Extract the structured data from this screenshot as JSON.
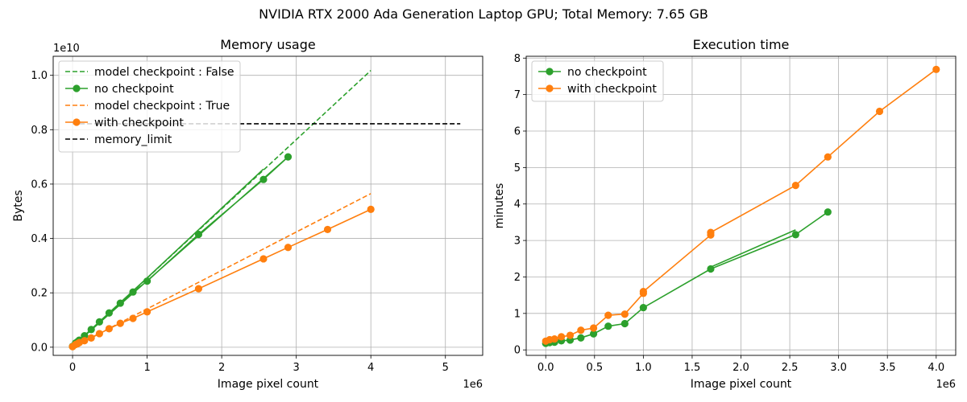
{
  "figure": {
    "title": "NVIDIA RTX 2000 Ada Generation Laptop GPU; Total Memory: 7.65 GB"
  },
  "colors": {
    "green": "#2ca02c",
    "orange": "#ff7f0e",
    "black": "#000000",
    "grid": "#b0b0b0"
  },
  "chart_data": [
    {
      "type": "line",
      "title": "Memory usage",
      "xlabel": "Image pixel count",
      "ylabel": "Bytes",
      "x_offset_label": "1e6",
      "y_offset_label": "1e10",
      "xlim": [
        -0.26,
        5.5
      ],
      "ylim": [
        -0.03,
        1.07
      ],
      "grid": true,
      "legend_position": "upper-left",
      "x_ticks": [
        0,
        1,
        2,
        3,
        4,
        5
      ],
      "x_tick_labels": [
        "0",
        "1",
        "2",
        "3",
        "4",
        "5"
      ],
      "y_ticks": [
        0.0,
        0.2,
        0.4,
        0.6,
        0.8,
        1.0
      ],
      "y_tick_labels": [
        "0.0",
        "0.2",
        "0.4",
        "0.6",
        "0.8",
        "1.0"
      ],
      "series": [
        {
          "name": "model checkpoint : False",
          "color_key": "green",
          "style": "dashed",
          "marker": false,
          "x": [
            0,
            4.0
          ],
          "y": [
            0.0,
            1.018
          ]
        },
        {
          "name": "no checkpoint",
          "color_key": "green",
          "style": "solid",
          "marker": true,
          "x": [
            0.0,
            0.04,
            0.065,
            0.09,
            0.16,
            0.25,
            0.36,
            0.49,
            0.64,
            0.81,
            1.0,
            1.69,
            2.56,
            2.89,
            0.0
          ],
          "y": [
            0.003,
            0.015,
            0.02,
            0.026,
            0.042,
            0.065,
            0.093,
            0.126,
            0.162,
            0.203,
            0.243,
            0.415,
            0.617,
            0.7,
            0.003
          ],
          "extra_segments": [
            {
              "x": [
                0.0,
                1.0,
                2.56
              ],
              "y": [
                0.003,
                0.255,
                0.655
              ]
            }
          ]
        },
        {
          "name": "model checkpoint : True",
          "color_key": "orange",
          "style": "dashed",
          "marker": false,
          "x": [
            0,
            4.0
          ],
          "y": [
            0.0,
            0.565
          ]
        },
        {
          "name": "with checkpoint",
          "color_key": "orange",
          "style": "solid",
          "marker": true,
          "x": [
            0.0,
            0.04,
            0.065,
            0.09,
            0.16,
            0.25,
            0.36,
            0.49,
            0.64,
            0.81,
            1.0,
            1.69,
            2.56,
            2.89,
            3.42,
            4.0
          ],
          "y": [
            0.002,
            0.01,
            0.013,
            0.017,
            0.024,
            0.034,
            0.05,
            0.068,
            0.088,
            0.106,
            0.13,
            0.215,
            0.325,
            0.367,
            0.433,
            0.507
          ]
        },
        {
          "name": "memory_limit",
          "color_key": "black",
          "style": "dashed",
          "marker": false,
          "x": [
            0,
            5.2
          ],
          "y": [
            0.822,
            0.822
          ]
        }
      ]
    },
    {
      "type": "line",
      "title": "Execution time",
      "xlabel": "Image pixel count",
      "ylabel": "minutes",
      "x_offset_label": "1e6",
      "xlim": [
        -0.2,
        4.2
      ],
      "ylim": [
        -0.15,
        8.05
      ],
      "grid": true,
      "legend_position": "upper-left",
      "x_ticks": [
        0.0,
        0.5,
        1.0,
        1.5,
        2.0,
        2.5,
        3.0,
        3.5,
        4.0
      ],
      "x_tick_labels": [
        "0.0",
        "0.5",
        "1.0",
        "1.5",
        "2.0",
        "2.5",
        "3.0",
        "3.5",
        "4.0"
      ],
      "y_ticks": [
        0,
        1,
        2,
        3,
        4,
        5,
        6,
        7,
        8
      ],
      "y_tick_labels": [
        "0",
        "1",
        "2",
        "3",
        "4",
        "5",
        "6",
        "7",
        "8"
      ],
      "series": [
        {
          "name": "no checkpoint",
          "color_key": "green",
          "style": "solid",
          "marker": true,
          "x": [
            0.0,
            0.04,
            0.09,
            0.16,
            0.25,
            0.36,
            0.49,
            0.64,
            0.81,
            1.0,
            1.69,
            2.56,
            2.89
          ],
          "y": [
            0.18,
            0.2,
            0.21,
            0.25,
            0.27,
            0.33,
            0.44,
            0.65,
            0.72,
            1.16,
            2.22,
            3.16,
            3.78
          ],
          "extra_segments": [
            {
              "x": [
                1.69,
                2.56
              ],
              "y": [
                2.27,
                3.29
              ]
            }
          ]
        },
        {
          "name": "with checkpoint",
          "color_key": "orange",
          "style": "solid",
          "marker": true,
          "x": [
            0.0,
            0.04,
            0.09,
            0.16,
            0.25,
            0.36,
            0.49,
            0.64,
            0.81,
            1.0,
            1.0,
            1.69,
            1.69,
            2.56,
            2.89,
            3.42,
            4.0
          ],
          "y": [
            0.24,
            0.28,
            0.3,
            0.36,
            0.4,
            0.54,
            0.6,
            0.95,
            0.98,
            1.55,
            1.6,
            3.15,
            3.22,
            4.51,
            5.29,
            6.54,
            7.69
          ]
        }
      ]
    }
  ]
}
